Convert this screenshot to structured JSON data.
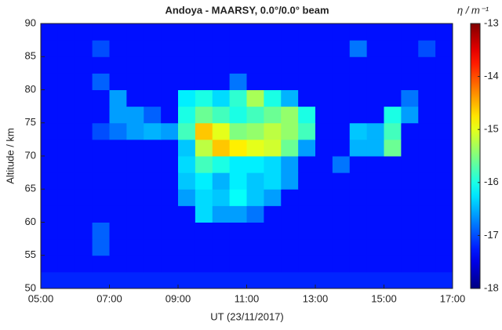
{
  "chart_data": {
    "type": "heatmap",
    "title": "Andoya - MAARSY, 0.0°/0.0° beam",
    "xlabel": "UT (23/11/2017)",
    "ylabel": "Altitude / km",
    "colorbar_label": "η / m⁻¹",
    "colormap": "jet",
    "x": [
      5.25,
      5.75,
      6.25,
      6.75,
      7.25,
      7.75,
      8.25,
      8.75,
      9.25,
      9.75,
      10.25,
      10.75,
      11.25,
      11.75,
      12.25,
      12.75,
      13.25,
      13.75,
      14.25,
      14.75,
      15.25,
      15.75,
      16.25,
      16.75
    ],
    "y": [
      51.25,
      53.75,
      56.25,
      58.75,
      61.25,
      63.75,
      66.25,
      68.75,
      71.25,
      73.75,
      76.25,
      78.75,
      81.25,
      83.75,
      86.25,
      88.75
    ],
    "z": [
      [
        -17.2,
        -17.2,
        -17.2,
        -17.2,
        -17.2,
        -17.2,
        -17.2,
        -17.2,
        -17.2,
        -17.2,
        -17.2,
        -17.2,
        -17.2,
        -17.2,
        -17.2,
        -17.2,
        -17.2,
        -17.2,
        -17.2,
        -17.2,
        -17.2,
        -17.2,
        -17.2,
        -17.2
      ],
      [
        -17.3,
        -17.3,
        -17.3,
        -17.3,
        -17.3,
        -17.3,
        -17.3,
        -17.3,
        -17.3,
        -17.3,
        -17.3,
        -17.3,
        -17.3,
        -17.3,
        -17.3,
        -17.3,
        -17.3,
        -17.3,
        -17.3,
        -17.3,
        -17.3,
        -17.3,
        -17.3,
        -17.3
      ],
      [
        -17.3,
        -17.3,
        -17.3,
        -16.9,
        -17.3,
        -17.3,
        -17.3,
        -17.3,
        -17.3,
        -17.3,
        -17.3,
        -17.3,
        -17.3,
        -17.3,
        -17.3,
        -17.3,
        -17.3,
        -17.3,
        -17.3,
        -17.3,
        -17.3,
        -17.3,
        -17.3,
        -17.3
      ],
      [
        -17.3,
        -17.3,
        -17.3,
        -16.9,
        -17.3,
        -17.3,
        -17.3,
        -17.3,
        -17.3,
        -17.3,
        -17.3,
        -17.3,
        -17.3,
        -17.3,
        -17.3,
        -17.3,
        -17.3,
        -17.3,
        -17.3,
        -17.3,
        -17.3,
        -17.3,
        -17.3,
        -17.3
      ],
      [
        -17.3,
        -17.3,
        -17.3,
        -17.3,
        -17.3,
        -17.3,
        -17.3,
        -17.3,
        -17.3,
        -16.3,
        -16.6,
        -16.6,
        -16.8,
        -17.3,
        -17.3,
        -17.3,
        -17.3,
        -17.3,
        -17.3,
        -17.3,
        -17.3,
        -17.3,
        -17.3,
        -17.3
      ],
      [
        -17.3,
        -17.3,
        -17.3,
        -17.3,
        -17.3,
        -17.3,
        -17.3,
        -17.3,
        -16.6,
        -16.3,
        -16.4,
        -16.1,
        -16.4,
        -16.6,
        -17.3,
        -17.3,
        -17.3,
        -17.3,
        -17.3,
        -17.3,
        -17.3,
        -17.3,
        -17.3,
        -17.3
      ],
      [
        -17.3,
        -17.3,
        -17.3,
        -17.3,
        -17.3,
        -17.3,
        -17.3,
        -17.3,
        -16.4,
        -16.2,
        -16.5,
        -16.2,
        -16.4,
        -16.3,
        -16.6,
        -17.3,
        -17.3,
        -17.3,
        -17.3,
        -17.3,
        -17.3,
        -17.3,
        -17.3,
        -17.3
      ],
      [
        -17.3,
        -17.3,
        -17.3,
        -17.3,
        -17.3,
        -17.3,
        -17.3,
        -17.3,
        -16.3,
        -15.8,
        -16,
        -16.2,
        -16.2,
        -16.3,
        -16.6,
        -17.3,
        -17.3,
        -16.8,
        -17.3,
        -17.3,
        -17.3,
        -17.3,
        -17.3,
        -17.3
      ],
      [
        -17.3,
        -17.3,
        -17.3,
        -17.3,
        -17.3,
        -17.3,
        -17.3,
        -17.3,
        -16.4,
        -15.2,
        -14.6,
        -14.8,
        -15,
        -15.1,
        -15.6,
        -16.6,
        -17.3,
        -17.3,
        -16.5,
        -16.5,
        -15.6,
        -17.3,
        -17.3,
        -17.3
      ],
      [
        -17.3,
        -17.3,
        -17.3,
        -17,
        -16.8,
        -16.6,
        -16.5,
        -16.6,
        -15.8,
        -14.6,
        -15,
        -15.5,
        -15.4,
        -15.2,
        -15.4,
        -15.8,
        -17.3,
        -17.3,
        -16.4,
        -16.5,
        -15.8,
        -17.3,
        -17.3,
        -17.3
      ],
      [
        -17.3,
        -17.3,
        -17.3,
        -17.3,
        -16.6,
        -16.6,
        -16.9,
        -17.3,
        -16,
        -15.6,
        -15.8,
        -16,
        -15.8,
        -15.6,
        -15.4,
        -16,
        -17.3,
        -17.3,
        -17.3,
        -17.3,
        -16,
        -16.6,
        -17.3,
        -17.3
      ],
      [
        -17.3,
        -17.3,
        -17.3,
        -17.3,
        -16.6,
        -17.3,
        -17.3,
        -17.3,
        -16.2,
        -16,
        -16.3,
        -15.9,
        -15.3,
        -16,
        -16.5,
        -17.3,
        -17.3,
        -17.3,
        -17.3,
        -17.3,
        -17.3,
        -16.8,
        -17.3,
        -17.3
      ],
      [
        -17.3,
        -17.3,
        -17.3,
        -16.9,
        -17.3,
        -17.3,
        -17.3,
        -17.3,
        -17.3,
        -17.3,
        -17.3,
        -16.8,
        -17.3,
        -17.3,
        -17.3,
        -17.3,
        -17.3,
        -17.3,
        -17.3,
        -17.3,
        -17.3,
        -17.3,
        -17.3,
        -17.3
      ],
      [
        -17.3,
        -17.3,
        -17.3,
        -17.3,
        -17.3,
        -17.3,
        -17.3,
        -17.3,
        -17.3,
        -17.3,
        -17.3,
        -17.3,
        -17.3,
        -17.3,
        -17.3,
        -17.3,
        -17.3,
        -17.3,
        -17.3,
        -17.3,
        -17.3,
        -17.3,
        -17.3,
        -17.3
      ],
      [
        -17.3,
        -17.3,
        -17.3,
        -17,
        -17.3,
        -17.3,
        -17.3,
        -17.3,
        -17.3,
        -17.3,
        -17.3,
        -17.3,
        -17.3,
        -17.3,
        -17.3,
        -17.3,
        -17.3,
        -17.3,
        -16.8,
        -17.3,
        -17.3,
        -17.3,
        -17,
        -17.3
      ],
      [
        -17.3,
        -17.3,
        -17.3,
        -17.3,
        -17.3,
        -17.3,
        -17.3,
        -17.3,
        -17.3,
        -17.3,
        -17.3,
        -17.3,
        -17.3,
        -17.3,
        -17.3,
        -17.3,
        -17.3,
        -17.3,
        -17.3,
        -17.3,
        -17.3,
        -17.3,
        -17.3,
        -17.3
      ]
    ],
    "xlim": [
      5,
      17
    ],
    "ylim": [
      50,
      90
    ],
    "clim": [
      -18,
      -13
    ],
    "xticks": [
      {
        "value": 5,
        "label": "05:00"
      },
      {
        "value": 7,
        "label": "07:00"
      },
      {
        "value": 9,
        "label": "09:00"
      },
      {
        "value": 11,
        "label": "11:00"
      },
      {
        "value": 13,
        "label": "13:00"
      },
      {
        "value": 15,
        "label": "15:00"
      },
      {
        "value": 17,
        "label": "17:00"
      }
    ],
    "yticks": [
      50,
      55,
      60,
      65,
      70,
      75,
      80,
      85,
      90
    ],
    "cticks": [
      -18,
      -17,
      -16,
      -15,
      -14,
      -13
    ]
  }
}
